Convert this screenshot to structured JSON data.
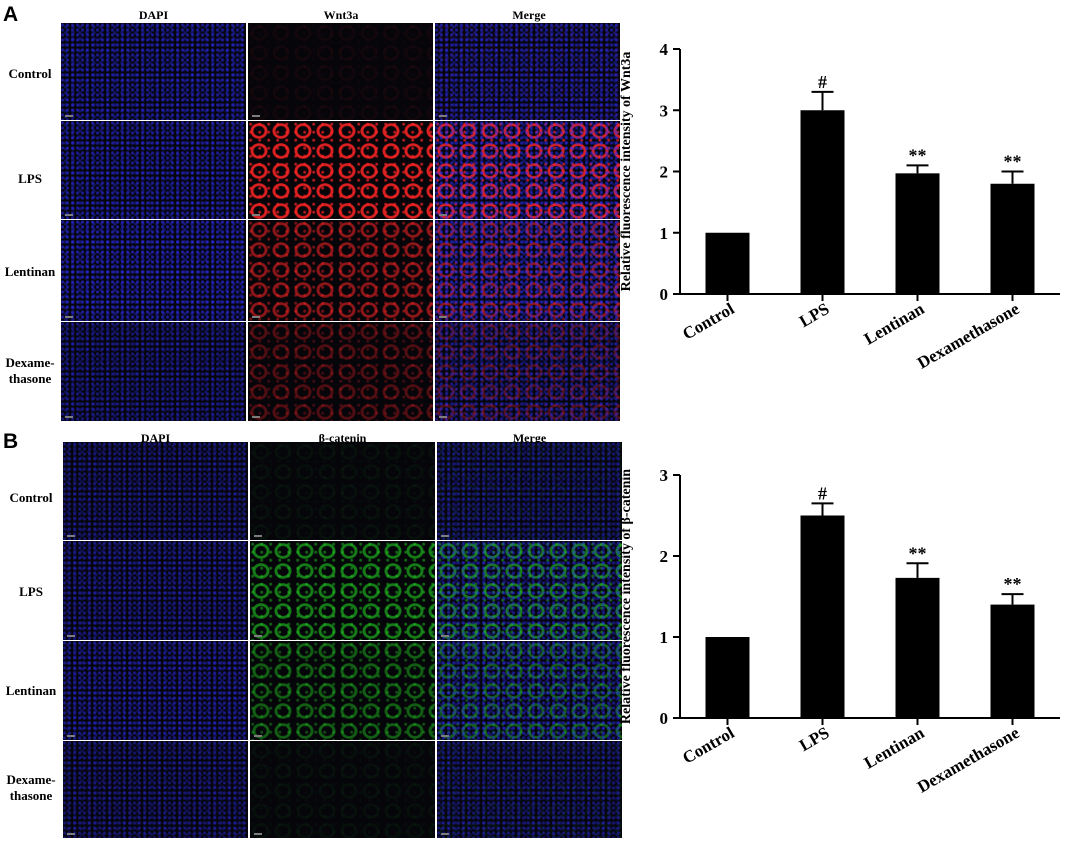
{
  "panels": [
    {
      "letter": "A",
      "marker": "Wnt3a",
      "columns": [
        "DAPI",
        "Wnt3a",
        "Merge"
      ],
      "rows": [
        "Control",
        "LPS",
        "Lentinan",
        "Dexame-\nthasone"
      ],
      "colors": {
        "dapi": "#2e2eff",
        "marker": "#ff2424"
      },
      "intensity": {
        "dapi": [
          0.55,
          0.55,
          0.6,
          0.45
        ],
        "marker": [
          0.05,
          0.85,
          0.55,
          0.3
        ]
      }
    },
    {
      "letter": "B",
      "marker": "β-catenin",
      "columns": [
        "DAPI",
        "β-catenin",
        "Merge"
      ],
      "rows": [
        "Control",
        "LPS",
        "Lentinan",
        "Dexame-\nthasone"
      ],
      "colors": {
        "dapi": "#2e2eff",
        "marker": "#22cc22"
      },
      "intensity": {
        "dapi": [
          0.4,
          0.45,
          0.5,
          0.4
        ],
        "marker": [
          0.05,
          0.6,
          0.45,
          0.05
        ]
      }
    }
  ],
  "chart_data": [
    {
      "type": "bar",
      "categories": [
        "Control",
        "LPS",
        "Lentinan",
        "Dexamethasone"
      ],
      "values": [
        1.0,
        3.0,
        1.97,
        1.8
      ],
      "errors": [
        0,
        0.3,
        0.13,
        0.2
      ],
      "annotations": [
        "",
        "#",
        "**",
        "**"
      ],
      "ylabel": "Relative fluorescence intensity of Wnt3a",
      "ylim": [
        0,
        4
      ],
      "yticks": [
        0,
        1,
        2,
        3,
        4
      ],
      "bar_color": "#000000"
    },
    {
      "type": "bar",
      "categories": [
        "Control",
        "LPS",
        "Lentinan",
        "Dexamethasone"
      ],
      "values": [
        1.0,
        2.5,
        1.73,
        1.4
      ],
      "errors": [
        0,
        0.15,
        0.18,
        0.13
      ],
      "annotations": [
        "",
        "#",
        "**",
        "**"
      ],
      "ylabel": "Relative fluorescence intensity of β-catenin",
      "ylim": [
        0,
        3
      ],
      "yticks": [
        0,
        1,
        2,
        3
      ],
      "bar_color": "#000000"
    }
  ]
}
